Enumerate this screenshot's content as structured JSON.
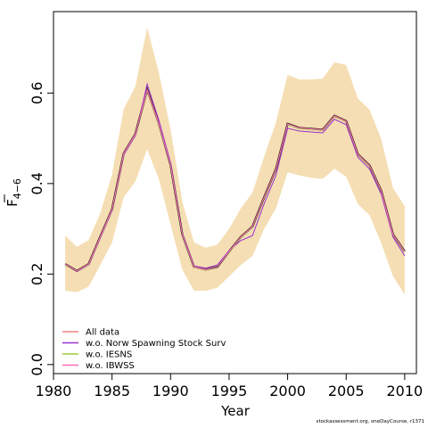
{
  "chart_data": {
    "type": "line",
    "xlabel": "Year",
    "ylabel": "F",
    "ylabel_subscript": "4−6",
    "xlim": [
      1980,
      2011
    ],
    "ylim": [
      -0.02,
      0.78
    ],
    "xticks": [
      1980,
      1985,
      1990,
      1995,
      2000,
      2005,
      2010
    ],
    "yticks": [
      0.0,
      0.2,
      0.4,
      0.6
    ],
    "ytick_labels": [
      "0.0",
      "0.2",
      "0.4",
      "0.6"
    ],
    "x": [
      1981,
      1982,
      1983,
      1984,
      1985,
      1986,
      1987,
      1988,
      1989,
      1990,
      1991,
      1992,
      1993,
      1994,
      1995,
      1996,
      1997,
      1998,
      1999,
      2000,
      2001,
      2002,
      2003,
      2004,
      2005,
      2006,
      2007,
      2008,
      2009,
      2010
    ],
    "ci_band": {
      "color": "#f5deb3",
      "lower": [
        0.163,
        0.16,
        0.172,
        0.22,
        0.27,
        0.37,
        0.405,
        0.476,
        0.41,
        0.31,
        0.21,
        0.163,
        0.163,
        0.17,
        0.195,
        0.22,
        0.24,
        0.3,
        0.345,
        0.425,
        0.418,
        0.413,
        0.41,
        0.433,
        0.415,
        0.355,
        0.33,
        0.268,
        0.195,
        0.155
      ],
      "upper": [
        0.285,
        0.26,
        0.275,
        0.335,
        0.42,
        0.565,
        0.615,
        0.745,
        0.645,
        0.52,
        0.36,
        0.27,
        0.258,
        0.265,
        0.3,
        0.345,
        0.38,
        0.46,
        0.535,
        0.64,
        0.63,
        0.63,
        0.632,
        0.668,
        0.662,
        0.588,
        0.563,
        0.498,
        0.39,
        0.35
      ]
    },
    "series": [
      {
        "name": "All data",
        "color": "#f08080",
        "values": [
          0.222,
          0.207,
          0.222,
          0.283,
          0.343,
          0.467,
          0.51,
          0.608,
          0.533,
          0.441,
          0.288,
          0.216,
          0.21,
          0.216,
          0.25,
          0.282,
          0.305,
          0.37,
          0.432,
          0.532,
          0.523,
          0.521,
          0.519,
          0.55,
          0.538,
          0.465,
          0.44,
          0.384,
          0.288,
          0.25
        ]
      },
      {
        "name": "w.o. Norw Spawning Stock Surv",
        "color": "#9932cc",
        "values": [
          0.222,
          0.206,
          0.22,
          0.28,
          0.34,
          0.463,
          0.506,
          0.62,
          0.54,
          0.446,
          0.29,
          0.218,
          0.213,
          0.22,
          0.252,
          0.274,
          0.285,
          0.356,
          0.418,
          0.522,
          0.516,
          0.514,
          0.512,
          0.542,
          0.53,
          0.458,
          0.432,
          0.376,
          0.282,
          0.24
        ]
      },
      {
        "name": "w.o. IESNS",
        "color": "#9acd32",
        "values": [
          0.221,
          0.207,
          0.221,
          0.282,
          0.342,
          0.466,
          0.509,
          0.606,
          0.531,
          0.44,
          0.287,
          0.215,
          0.209,
          0.216,
          0.249,
          0.281,
          0.304,
          0.369,
          0.431,
          0.531,
          0.522,
          0.52,
          0.518,
          0.549,
          0.537,
          0.464,
          0.439,
          0.383,
          0.287,
          0.249
        ]
      },
      {
        "name": "w.o. IBWSS",
        "color": "#ff69b4",
        "values": [
          0.222,
          0.207,
          0.222,
          0.283,
          0.343,
          0.467,
          0.51,
          0.607,
          0.532,
          0.441,
          0.288,
          0.216,
          0.21,
          0.216,
          0.25,
          0.282,
          0.305,
          0.37,
          0.432,
          0.532,
          0.523,
          0.521,
          0.519,
          0.55,
          0.538,
          0.465,
          0.44,
          0.384,
          0.288,
          0.25
        ]
      }
    ],
    "estimate": {
      "color": "#000000",
      "values": [
        0.222,
        0.207,
        0.222,
        0.283,
        0.343,
        0.467,
        0.51,
        0.608,
        0.533,
        0.441,
        0.288,
        0.216,
        0.21,
        0.216,
        0.25,
        0.282,
        0.305,
        0.37,
        0.432,
        0.532,
        0.523,
        0.521,
        0.519,
        0.55,
        0.538,
        0.465,
        0.44,
        0.384,
        0.288,
        0.25
      ]
    },
    "legend_position": "bottom-left",
    "grid": false
  },
  "footer_text": "stockassessment.org, oneDayCourse, r1371"
}
